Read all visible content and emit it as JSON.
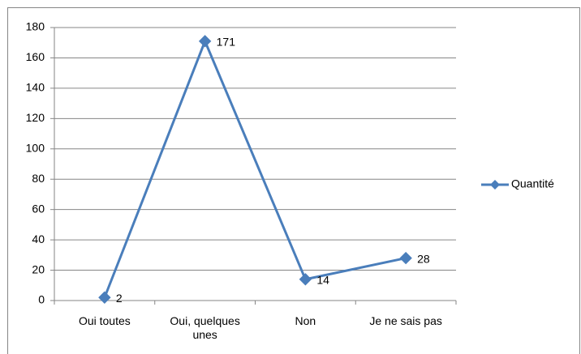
{
  "chart_data": {
    "type": "line",
    "categories": [
      "Oui toutes",
      "Oui, quelques unes",
      "Non",
      "Je ne sais pas"
    ],
    "series": [
      {
        "name": "Quantité",
        "color": "#4a7ebb",
        "values": [
          2,
          171,
          14,
          28
        ]
      }
    ],
    "ylim": [
      0,
      180
    ],
    "yticks": [
      0,
      20,
      40,
      60,
      80,
      100,
      120,
      140,
      160,
      180
    ],
    "grid": true,
    "legend": "right",
    "data_labels": true
  }
}
